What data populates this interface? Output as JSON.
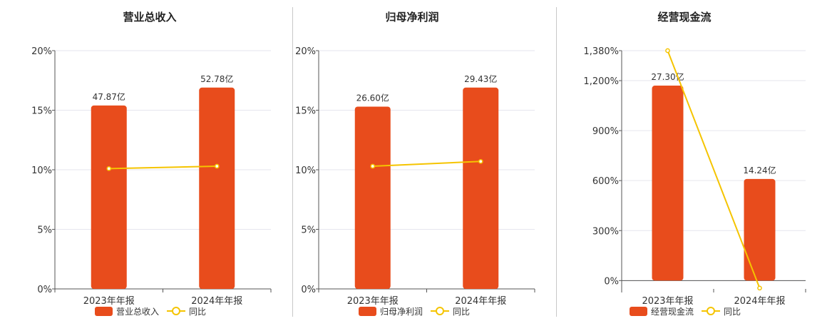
{
  "colors": {
    "bar": "#e84c1c",
    "line": "#f5c400",
    "grid": "#e6e6ee",
    "axis": "#555555"
  },
  "chart_data": [
    {
      "type": "bar",
      "title": "营业总收入",
      "categories": [
        "2023年年报",
        "2024年年报"
      ],
      "series": [
        {
          "name": "营业总收入",
          "type": "bar",
          "values": [
            15.4,
            16.9
          ],
          "labels": [
            "47.87亿",
            "52.78亿"
          ]
        },
        {
          "name": "同比",
          "type": "line",
          "values": [
            10.1,
            10.3
          ]
        }
      ],
      "yticks": [
        "0%",
        "5%",
        "10%",
        "15%",
        "20%"
      ],
      "ylim": [
        0,
        20
      ],
      "grid": true,
      "legend": "bottom"
    },
    {
      "type": "bar",
      "title": "归母净利润",
      "categories": [
        "2023年年报",
        "2024年年报"
      ],
      "series": [
        {
          "name": "归母净利润",
          "type": "bar",
          "values": [
            15.3,
            16.9
          ],
          "labels": [
            "26.60亿",
            "29.43亿"
          ]
        },
        {
          "name": "同比",
          "type": "line",
          "values": [
            10.3,
            10.7
          ]
        }
      ],
      "yticks": [
        "0%",
        "5%",
        "10%",
        "15%",
        "20%"
      ],
      "ylim": [
        0,
        20
      ],
      "grid": true,
      "legend": "bottom"
    },
    {
      "type": "bar",
      "title": "经营现金流",
      "categories": [
        "2023年年报",
        "2024年年报"
      ],
      "series": [
        {
          "name": "经营现金流",
          "type": "bar",
          "values": [
            1170,
            610
          ],
          "labels": [
            "27.30亿",
            "14.24亿"
          ]
        },
        {
          "name": "同比",
          "type": "line",
          "values": [
            1380,
            -45
          ]
        }
      ],
      "yticks": [
        "0%",
        "300%",
        "600%",
        "900%",
        "1,200%",
        "1,380%"
      ],
      "ytick_values": [
        0,
        300,
        600,
        900,
        1200,
        1380
      ],
      "ylim": [
        -50,
        1380
      ],
      "grid": true,
      "legend": "bottom"
    }
  ]
}
